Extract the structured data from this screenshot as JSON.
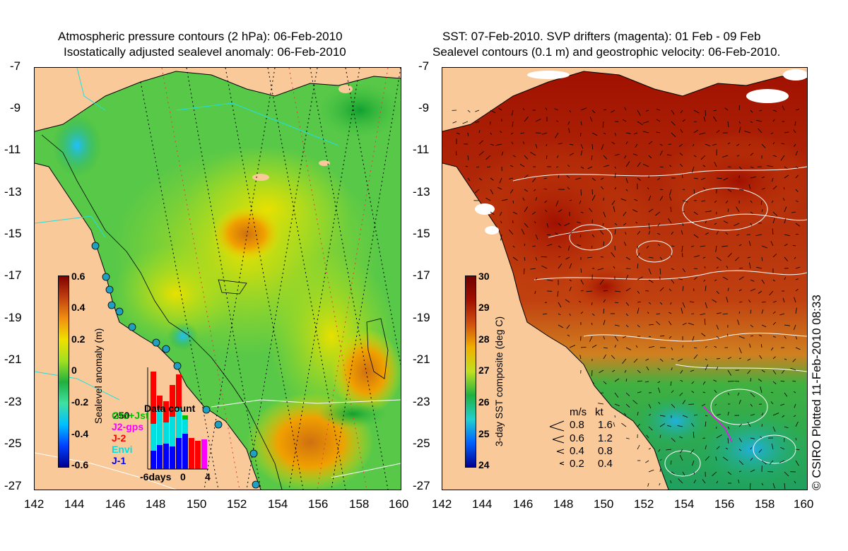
{
  "left_panel": {
    "title_line1": "Atmospheric pressure contours (2 hPa): 06-Feb-2010",
    "title_line2": "Isostatically adjusted sealevel anomaly: 06-Feb-2010",
    "y_ticks": [
      "-7",
      "-9",
      "-11",
      "-13",
      "-15",
      "-17",
      "-19",
      "-21",
      "-23",
      "-25",
      "-27"
    ],
    "x_ticks": [
      "142",
      "144",
      "146",
      "148",
      "150",
      "152",
      "154",
      "156",
      "158",
      "160"
    ],
    "colorbar": {
      "title": "Sealevel anomaly (m)",
      "labels": [
        "0.6",
        "0.4",
        "0.2",
        "0",
        "-0.2",
        "-0.4",
        "-0.6"
      ],
      "range": [
        -0.6,
        0.6
      ]
    },
    "data_count": {
      "title": "Data count",
      "max_label": "250",
      "x_labels": [
        "-6days",
        "0",
        "4"
      ],
      "legend": [
        {
          "name": "Gfo+Jst",
          "color": "#00c000"
        },
        {
          "name": "J2-gps",
          "color": "#ff00ff"
        },
        {
          "name": "J-2",
          "color": "#ff0000"
        },
        {
          "name": "Envi",
          "color": "#00e0e0"
        },
        {
          "name": "J-1",
          "color": "#0000ff"
        }
      ]
    }
  },
  "right_panel": {
    "title_line1": "SST: 07-Feb-2010. SVP drifters (magenta): 01 Feb - 09 Feb",
    "title_line2": "Sealevel contours (0.1 m) and geostrophic velocity: 06-Feb-2010.",
    "y_ticks": [
      "-7",
      "-9",
      "-11",
      "-13",
      "-15",
      "-17",
      "-19",
      "-21",
      "-23",
      "-25",
      "-27"
    ],
    "x_ticks": [
      "142",
      "144",
      "146",
      "148",
      "150",
      "152",
      "154",
      "156",
      "158",
      "160"
    ],
    "colorbar": {
      "title": "3-day SST composite (deg C)",
      "labels": [
        "30",
        "29",
        "28",
        "27",
        "26",
        "25",
        "24"
      ],
      "range": [
        24,
        30
      ]
    },
    "velocity_legend": {
      "header_ms": "m/s",
      "header_kt": "kt",
      "rows": [
        {
          "ms": "0.8",
          "kt": "1.6"
        },
        {
          "ms": "0.6",
          "kt": "1.2"
        },
        {
          "ms": "0.4",
          "kt": "0.8"
        },
        {
          "ms": "0.2",
          "kt": "0.4"
        }
      ]
    }
  },
  "credit": "© CSIRO Plotted 11-Feb-2010 08:33",
  "colors": {
    "land": "#f9c99a",
    "sla_scale": [
      "#00008f",
      "#0040ff",
      "#00c0ff",
      "#40e0a0",
      "#20b040",
      "#a0e020",
      "#f0e000",
      "#f09010",
      "#c04010",
      "#800000"
    ],
    "sst_scale": [
      "#00008f",
      "#0060ff",
      "#20d0d0",
      "#20b040",
      "#c0e020",
      "#f0b000",
      "#d05010",
      "#a01000",
      "#700000"
    ]
  }
}
